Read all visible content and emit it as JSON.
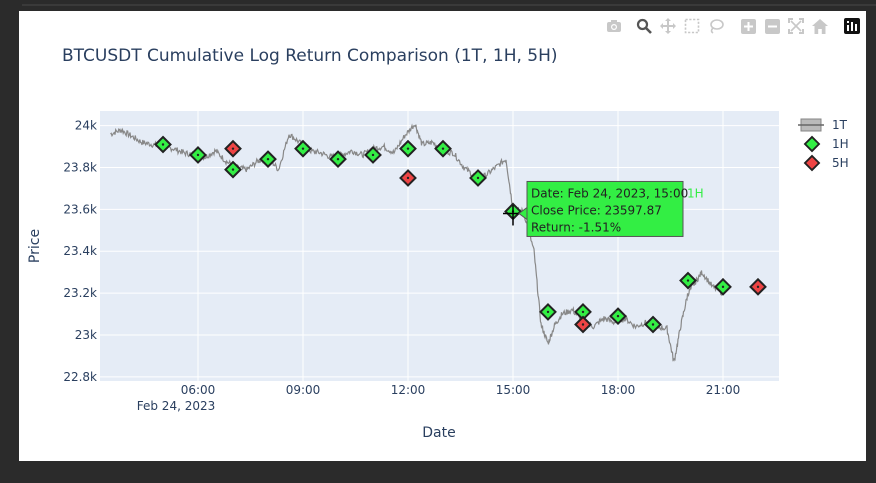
{
  "toolbar": {
    "icons": [
      "camera-icon",
      "zoom-icon",
      "pan-icon",
      "box-select-icon",
      "lasso-icon",
      "zoom-in-icon",
      "zoom-out-icon",
      "autoscale-icon",
      "reset-axes-icon",
      "plotly-logo-icon"
    ]
  },
  "chart_data": {
    "type": "line",
    "title": "BTCUSDT Cumulative Log Return Comparison (1T, 1H, 5H)",
    "xlabel": "Date",
    "ylabel": "Price",
    "x_ticks": [
      "06:00",
      "09:00",
      "12:00",
      "15:00",
      "18:00",
      "21:00"
    ],
    "x_tick_date": "Feb 24, 2023",
    "y_ticks": [
      "22.8k",
      "23k",
      "23.2k",
      "23.4k",
      "23.6k",
      "23.8k",
      "24k"
    ],
    "xlim_hours": [
      3.2,
      22.6
    ],
    "ylim": [
      22780,
      24070
    ],
    "legend_position": "right",
    "series": [
      {
        "name": "1T",
        "color": "#888888",
        "x": [
          3.5,
          3.8,
          4.1,
          4.4,
          4.7,
          5.0,
          5.3,
          5.6,
          5.9,
          6.2,
          6.5,
          6.8,
          7.1,
          7.4,
          7.7,
          8.0,
          8.3,
          8.6,
          8.9,
          9.2,
          9.5,
          9.8,
          10.1,
          10.4,
          10.7,
          11.0,
          11.3,
          11.6,
          11.9,
          12.2,
          12.4,
          12.7,
          13.0,
          13.3,
          13.6,
          13.9,
          14.2,
          14.5,
          14.8,
          15.0,
          15.3,
          15.6,
          15.8,
          16.0,
          16.2,
          16.4,
          16.7,
          17.0,
          17.3,
          17.6,
          17.9,
          18.2,
          18.5,
          18.8,
          19.1,
          19.4,
          19.6,
          19.8,
          20.0,
          20.2,
          20.4,
          20.7,
          21.0
        ],
        "y": [
          23960,
          23980,
          23950,
          23920,
          23910,
          23900,
          23890,
          23870,
          23860,
          23850,
          23880,
          23830,
          23800,
          23790,
          23830,
          23850,
          23790,
          23960,
          23920,
          23880,
          23870,
          23850,
          23860,
          23880,
          23860,
          23890,
          23900,
          23870,
          23950,
          24010,
          23910,
          23920,
          23880,
          23870,
          23800,
          23760,
          23760,
          23800,
          23840,
          23600,
          23590,
          23400,
          23050,
          22960,
          23050,
          23100,
          23120,
          23060,
          23040,
          23080,
          23060,
          23080,
          23040,
          23060,
          23040,
          23030,
          22870,
          23050,
          23200,
          23250,
          23300,
          23230,
          23200
        ]
      },
      {
        "name": "1H",
        "color": "#33ee44",
        "x": [
          5,
          6,
          7,
          8,
          9,
          10,
          11,
          12,
          13,
          14,
          15,
          16,
          17,
          18,
          19,
          20,
          21
        ],
        "y": [
          23910,
          23860,
          23790,
          23840,
          23890,
          23840,
          23860,
          23890,
          23890,
          23750,
          23590,
          23110,
          23110,
          23090,
          23050,
          23260,
          23230
        ]
      },
      {
        "name": "5H",
        "color": "#ee4444",
        "x": [
          7,
          12,
          17,
          22
        ],
        "y": [
          23890,
          23750,
          23050,
          23230
        ]
      }
    ],
    "hover": {
      "series": "1H",
      "x": 15,
      "y": 23590,
      "lines": [
        "Date: Feb 24, 2023, 15:00",
        "Close Price: 23597.87",
        "Return: -1.51%"
      ],
      "tag": "1H"
    }
  }
}
